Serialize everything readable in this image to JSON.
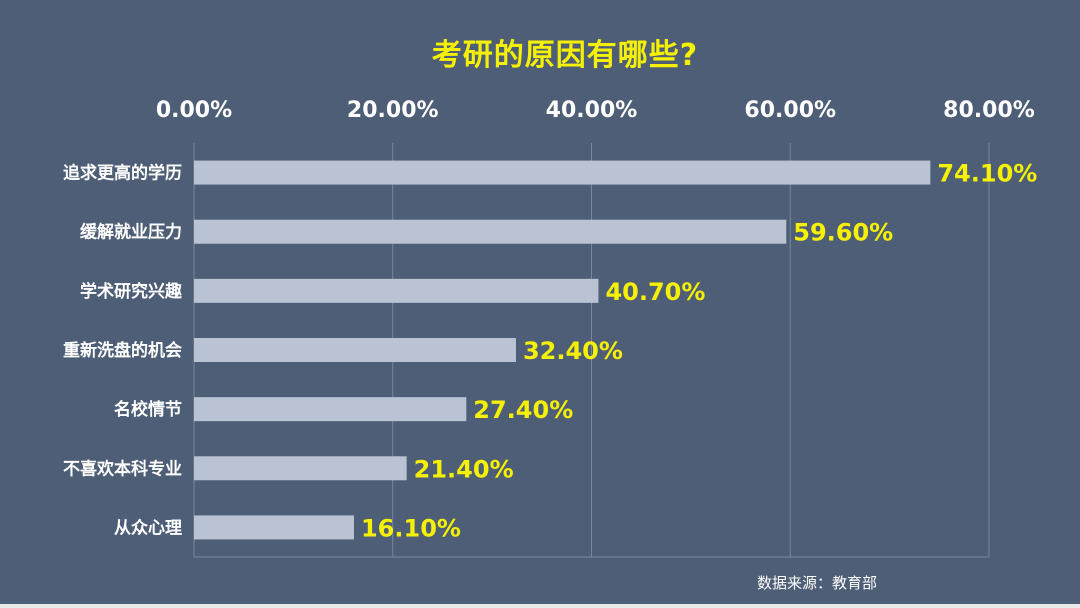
{
  "chart_data": {
    "type": "bar",
    "orientation": "horizontal",
    "title": "考研的原因有哪些?",
    "categories": [
      "追求更高的学历",
      "缓解就业压力",
      "学术研究兴趣",
      "重新洗盘的机会",
      "名校情节",
      "不喜欢本科专业",
      "从众心理"
    ],
    "values": [
      74.1,
      59.6,
      40.7,
      32.4,
      27.4,
      21.4,
      16.1
    ],
    "value_labels": [
      "74.10%",
      "59.60%",
      "40.70%",
      "32.40%",
      "27.40%",
      "21.40%",
      "16.10%"
    ],
    "xlim": [
      0,
      80
    ],
    "x_ticks": [
      0,
      20,
      40,
      60,
      80
    ],
    "x_tick_labels": [
      "0.00%",
      "20.00%",
      "40.00%",
      "60.00%",
      "80.00%"
    ],
    "x_axis_position": "top",
    "grid": "vertical",
    "legend": "none",
    "colors": {
      "background": "#4d5e76",
      "bar": "#b9c3d4",
      "value_label": "#f6f005",
      "title": "#f6f005",
      "text": "#ffffff",
      "grid": "#7a889c"
    }
  },
  "footer": {
    "source": "数据来源：教育部"
  }
}
